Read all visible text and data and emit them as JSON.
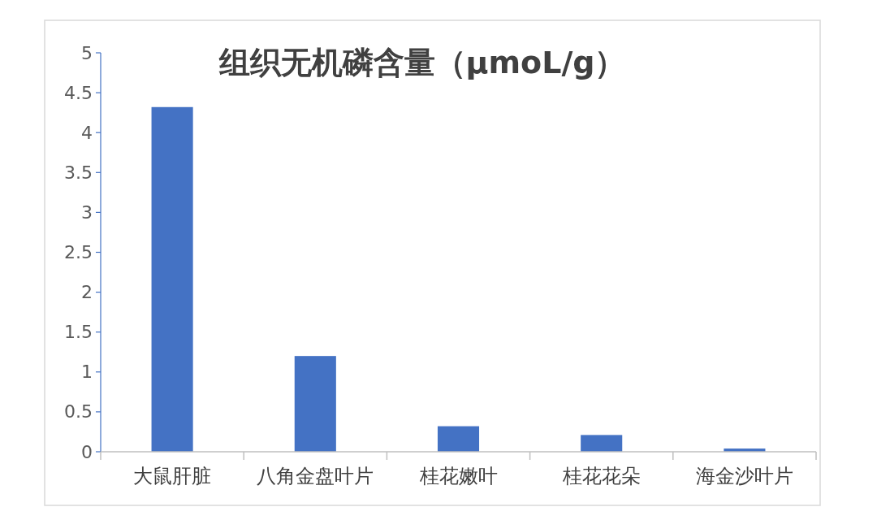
{
  "chart_data": {
    "type": "bar",
    "title": "组织无机磷含量（μmoL/g）",
    "categories": [
      "大鼠肝脏",
      "八角金盘叶片",
      "桂花嫩叶",
      "桂花花朵",
      "海金沙叶片"
    ],
    "values": [
      4.32,
      1.2,
      0.32,
      0.21,
      0.04
    ],
    "color": "#4472c4",
    "ylim": [
      0,
      5
    ],
    "yticks": [
      0,
      0.5,
      1,
      1.5,
      2,
      2.5,
      3,
      3.5,
      4,
      4.5,
      5
    ],
    "grid": false
  }
}
